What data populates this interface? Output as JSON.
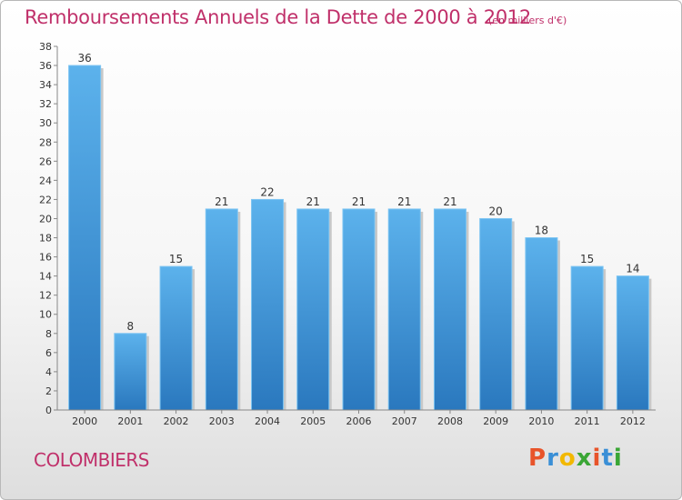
{
  "chart_data": {
    "type": "bar",
    "title": "Remboursements Annuels de la Dette de 2000 à 2012",
    "subtitle": "(en milliers d'€)",
    "categories": [
      "2000",
      "2001",
      "2002",
      "2003",
      "2004",
      "2005",
      "2006",
      "2007",
      "2008",
      "2009",
      "2010",
      "2011",
      "2012"
    ],
    "values": [
      36,
      8,
      15,
      21,
      22,
      21,
      21,
      21,
      21,
      20,
      18,
      15,
      14
    ],
    "ylim": [
      0,
      38
    ],
    "yticks": [
      0,
      2,
      4,
      6,
      8,
      10,
      12,
      14,
      16,
      18,
      20,
      22,
      24,
      26,
      28,
      30,
      32,
      34,
      36,
      38
    ],
    "grid": false,
    "bar_color": "#3a8fd6"
  },
  "footer": {
    "commune": "COLOMBIERS",
    "brand": "Proxiti",
    "brand_colors": [
      "#e8542a",
      "#3a8fd6",
      "#f2b800",
      "#3aa635",
      "#e8542a",
      "#3a8fd6",
      "#3aa635"
    ]
  }
}
